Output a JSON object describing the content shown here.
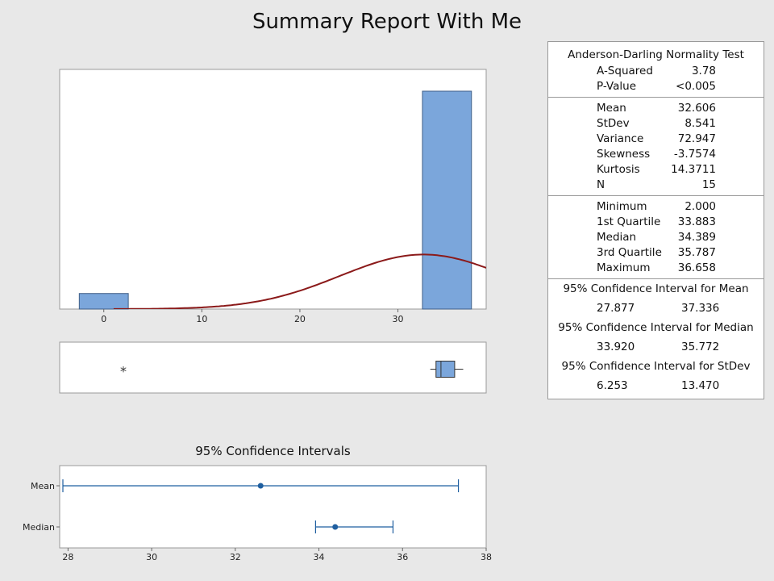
{
  "title": "Summary Report With Me",
  "stats": {
    "ad_heading": "Anderson-Darling Normality Test",
    "ad_rows": [
      {
        "label": "A-Squared",
        "value": "3.78"
      },
      {
        "label": "P-Value",
        "value": "<0.005"
      }
    ],
    "moment_rows": [
      {
        "label": "Mean",
        "value": "32.606"
      },
      {
        "label": "StDev",
        "value": "8.541"
      },
      {
        "label": "Variance",
        "value": "72.947"
      },
      {
        "label": "Skewness",
        "value": "-3.7574"
      },
      {
        "label": "Kurtosis",
        "value": "14.3711"
      },
      {
        "label": "N",
        "value": "15"
      }
    ],
    "quantile_rows": [
      {
        "label": "Minimum",
        "value": "2.000"
      },
      {
        "label": "1st Quartile",
        "value": "33.883"
      },
      {
        "label": "Median",
        "value": "34.389"
      },
      {
        "label": "3rd Quartile",
        "value": "35.787"
      },
      {
        "label": "Maximum",
        "value": "36.658"
      }
    ],
    "ci": [
      {
        "heading": "95% Confidence Interval for Mean",
        "lower": "27.877",
        "upper": "37.336"
      },
      {
        "heading": "95% Confidence Interval for Median",
        "lower": "33.920",
        "upper": "35.772"
      },
      {
        "heading": "95% Confidence Interval for StDev",
        "lower": "6.253",
        "upper": "13.470"
      }
    ]
  },
  "chart_data": [
    {
      "type": "bar",
      "subtype": "histogram",
      "bins": [
        {
          "center": 0,
          "count": 1
        },
        {
          "center": 35,
          "count": 14
        }
      ],
      "bin_width": 5,
      "xlim": [
        -4.5,
        39
      ],
      "xticks": [
        "0",
        "10",
        "20",
        "30"
      ],
      "ylim": [
        0,
        15.4
      ],
      "normal_fit": {
        "mean": 32.606,
        "stdev": 8.541
      },
      "grid": false
    },
    {
      "type": "boxplot",
      "xlim": [
        -4.5,
        39
      ],
      "whisker_low": 33.3,
      "q1": 33.883,
      "median": 34.389,
      "q3": 35.787,
      "whisker_high": 36.658,
      "outliers": [
        2.0
      ],
      "outlier_symbol": "*"
    },
    {
      "type": "scatter",
      "subtype": "interval-plot",
      "title": "95% Confidence Intervals",
      "categories": [
        "Mean",
        "Median"
      ],
      "estimates": [
        32.606,
        34.389
      ],
      "lower": [
        27.877,
        33.92
      ],
      "upper": [
        37.336,
        35.772
      ],
      "xlim": [
        27.8,
        38
      ],
      "xticks": [
        "28",
        "30",
        "32",
        "34",
        "36",
        "38"
      ]
    }
  ],
  "colors": {
    "bar_fill": "#7ba6db",
    "bar_stroke": "#3f5f88",
    "curve": "#8b1a1a",
    "interval": "#1f5fa0",
    "axis": "#666666"
  }
}
